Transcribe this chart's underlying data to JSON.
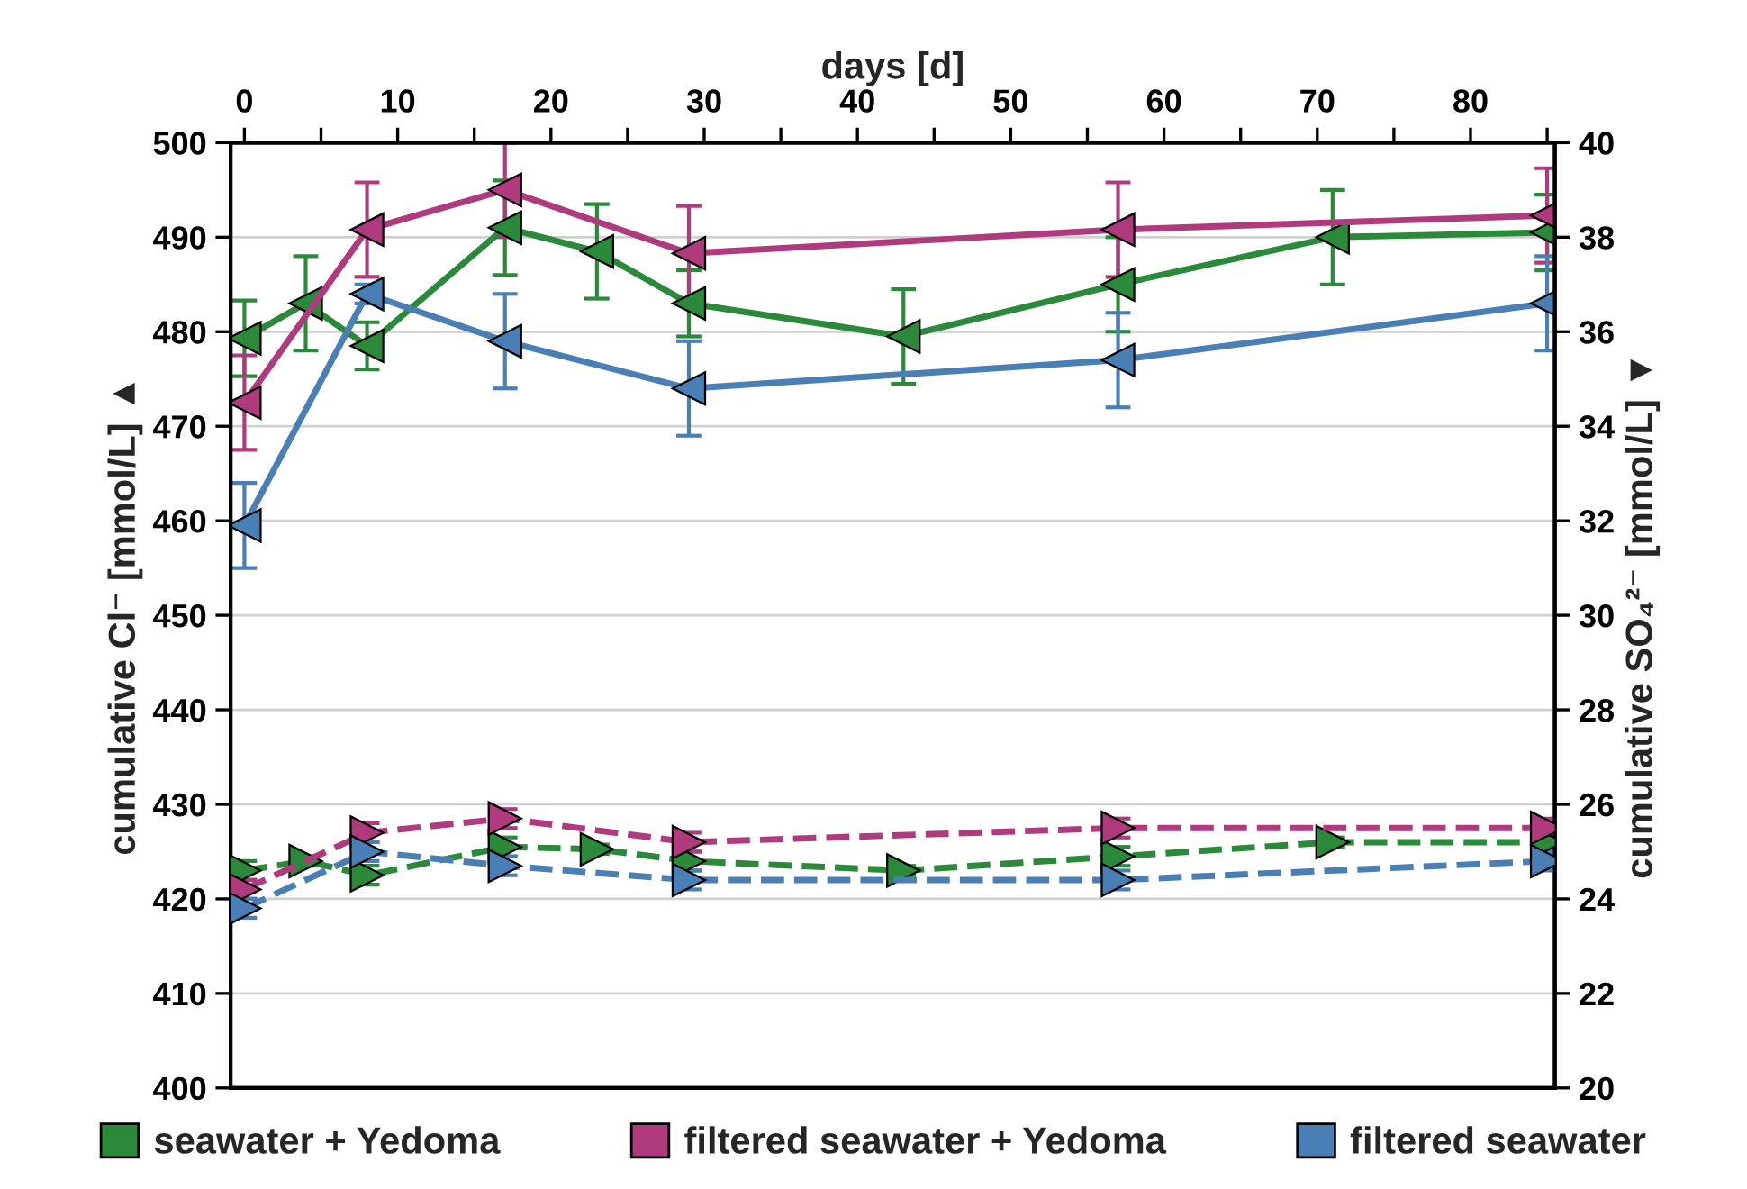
{
  "chart_data": {
    "type": "line",
    "xlabel": "days [d]",
    "ylabel": "cumulative Cl⁻ [mmol/L] ▲",
    "y2label": "cumulative SO₄²⁻ [mmol/L] ▼",
    "xlim": [
      -0.9,
      85.5
    ],
    "xticks": [
      0,
      {
        "value": 5,
        "label": null
      },
      10,
      {
        "value": 15,
        "label": null
      },
      20,
      {
        "value": 25,
        "label": null
      },
      30,
      {
        "value": 35,
        "label": null
      },
      40,
      {
        "value": 45,
        "label": null
      },
      50,
      {
        "value": 55,
        "label": null
      },
      60,
      {
        "value": 65,
        "label": null
      },
      70,
      {
        "value": 75,
        "label": null
      },
      80,
      {
        "value": 85,
        "label": null
      }
    ],
    "ylim": [
      400,
      500
    ],
    "yticks": [
      400,
      410,
      420,
      430,
      440,
      450,
      460,
      470,
      480,
      490,
      500
    ],
    "y2lim": [
      20,
      40
    ],
    "y2ticks": [
      20,
      22,
      24,
      26,
      28,
      30,
      32,
      34,
      36,
      38,
      40
    ],
    "grid": "y",
    "legend": "bottom",
    "marker": "triangle",
    "series": [
      {
        "name": "seawater + Yedoma",
        "color": "#2a8a3a",
        "line_style": "solid",
        "x": [
          0,
          4,
          8,
          17,
          23,
          29,
          43,
          57,
          71,
          85
        ],
        "values": [
          479.3,
          483,
          478.5,
          491,
          488.5,
          483,
          479.5,
          485,
          490,
          490.5
        ],
        "errors": [
          4,
          5,
          2.5,
          5,
          5,
          3.5,
          5,
          5,
          5,
          4
        ]
      },
      {
        "name": "filtered seawater + Yedoma",
        "color": "#b03a7e",
        "line_style": "solid",
        "x": [
          0,
          8,
          17,
          29,
          57,
          85
        ],
        "values": [
          472.5,
          490.8,
          495,
          488.3,
          490.8,
          492.3
        ],
        "errors": [
          5,
          5,
          5,
          5,
          5,
          5
        ]
      },
      {
        "name": "filtered seawater",
        "color": "#4a7fb5",
        "line_style": "solid",
        "x": [
          0,
          8,
          17,
          29,
          57,
          85
        ],
        "values": [
          459.5,
          484,
          479,
          474,
          477,
          483
        ],
        "errors": [
          4.5,
          1,
          5,
          5,
          5,
          5
        ]
      },
      {
        "color": "#2a8a3a",
        "axis": "y2",
        "line_style": "dashed",
        "x": [
          0,
          4,
          8,
          17,
          23,
          29,
          43,
          57,
          71,
          85
        ],
        "values": [
          24.6,
          24.8,
          24.5,
          25.1,
          25.05,
          24.8,
          24.6,
          24.9,
          25.2,
          25.2
        ],
        "errors": [
          0.2,
          0.1,
          0.2,
          0.2,
          0.1,
          0.2,
          0.1,
          0.2,
          0.1,
          0.2
        ]
      },
      {
        "color": "#b03a7e",
        "axis": "y2",
        "line_style": "dashed",
        "x": [
          0,
          8,
          17,
          29,
          57,
          85
        ],
        "values": [
          24.2,
          25.4,
          25.7,
          25.2,
          25.5,
          25.5
        ],
        "errors": [
          0.2,
          0.2,
          0.2,
          0.2,
          0.2,
          0.2
        ]
      },
      {
        "color": "#4a7fb5",
        "axis": "y2",
        "line_style": "dashed",
        "x": [
          0,
          8,
          17,
          29,
          57,
          85
        ],
        "values": [
          23.8,
          25.0,
          24.7,
          24.4,
          24.4,
          24.8
        ],
        "errors": [
          0.2,
          0.2,
          0.2,
          0.2,
          0.2,
          0.2
        ]
      }
    ]
  }
}
